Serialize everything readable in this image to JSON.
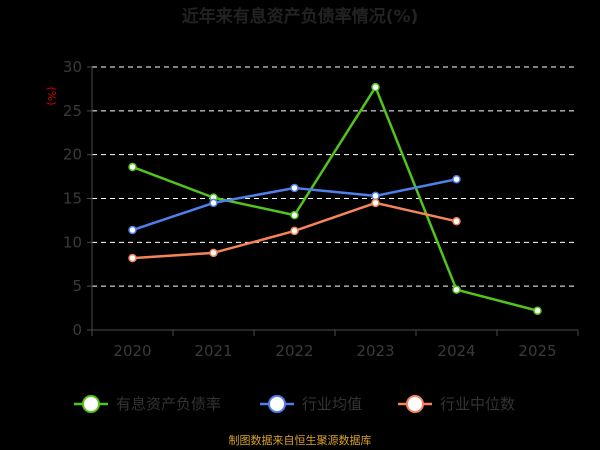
{
  "chart_data": {
    "type": "line",
    "title": "近年来有息资产负债率情况(%)",
    "unit_label": "(%)",
    "categories": [
      "2020",
      "2021",
      "2022",
      "2023",
      "2024",
      "2025"
    ],
    "y_ticks": [
      "0",
      "5",
      "10",
      "15",
      "20",
      "25",
      "30"
    ],
    "ylim": [
      0,
      30
    ],
    "grid": true,
    "legend_position": "bottom",
    "series": [
      {
        "name": "有息资产负债率",
        "color": "#52c41a",
        "values": [
          18.6,
          15.1,
          13.1,
          27.7,
          4.6,
          2.2
        ]
      },
      {
        "name": "行业均值",
        "color": "#4f7fe8",
        "values": [
          11.4,
          14.5,
          16.2,
          15.3,
          17.2,
          null
        ]
      },
      {
        "name": "行业中位数",
        "color": "#f5845a",
        "values": [
          8.2,
          8.8,
          11.3,
          14.5,
          12.4,
          null
        ]
      }
    ],
    "source_note": "制图数据来自恒生聚源数据库"
  }
}
